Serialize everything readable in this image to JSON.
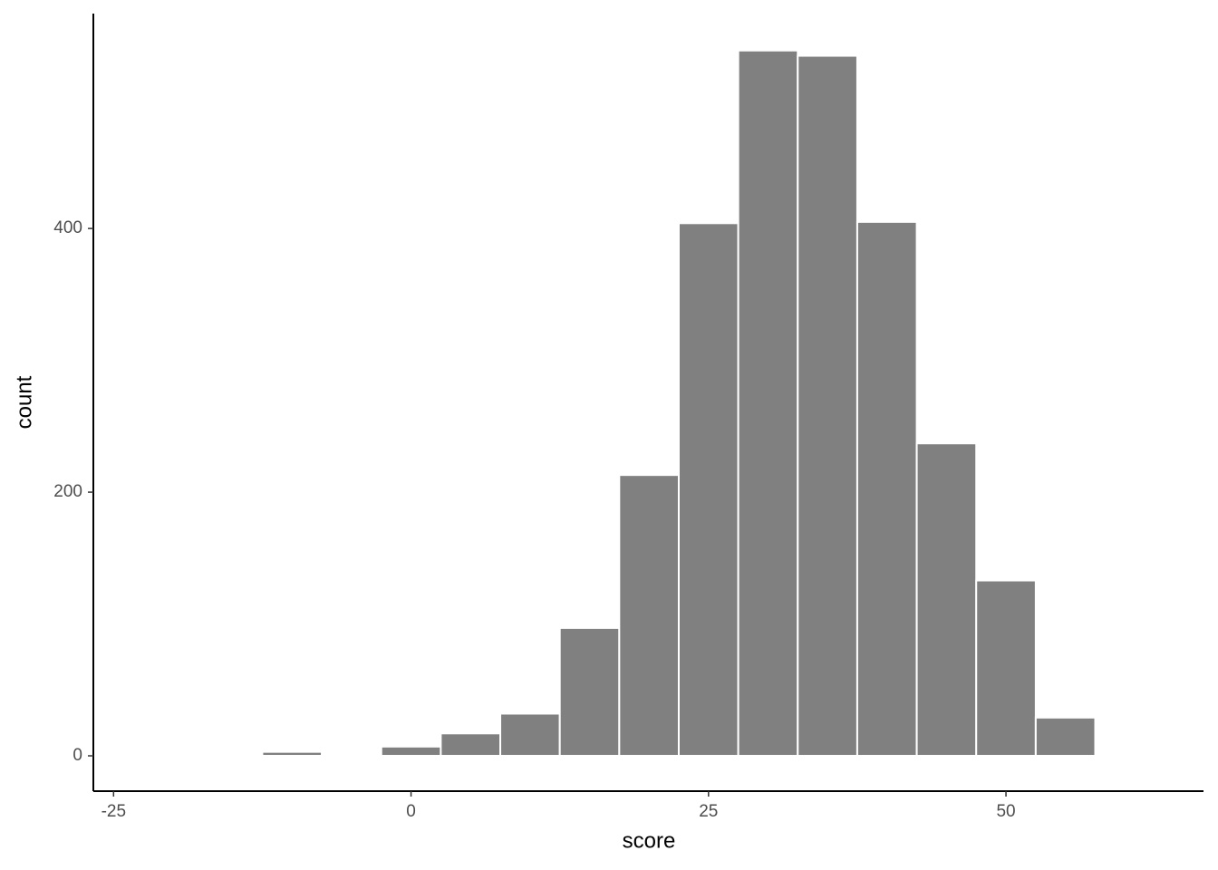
{
  "chart_data": {
    "type": "histogram",
    "x_label": "score",
    "y_label": "count",
    "bins": [
      -12.5,
      -7.5,
      -2.5,
      2.5,
      7.5,
      12.5,
      17.5,
      22.5,
      27.5,
      32.5,
      37.5,
      42.5,
      47.5,
      52.5,
      57.5
    ],
    "values": [
      3,
      1,
      7,
      17,
      32,
      97,
      213,
      404,
      535,
      531,
      405,
      237,
      133,
      29
    ],
    "color": "#808080",
    "xlim": [
      -26.7,
      66.6
    ],
    "xticks": [
      -25,
      0,
      25,
      50
    ],
    "ylim": [
      -26.8,
      563
    ],
    "yticks": [
      0,
      200,
      400
    ],
    "grid": false
  }
}
